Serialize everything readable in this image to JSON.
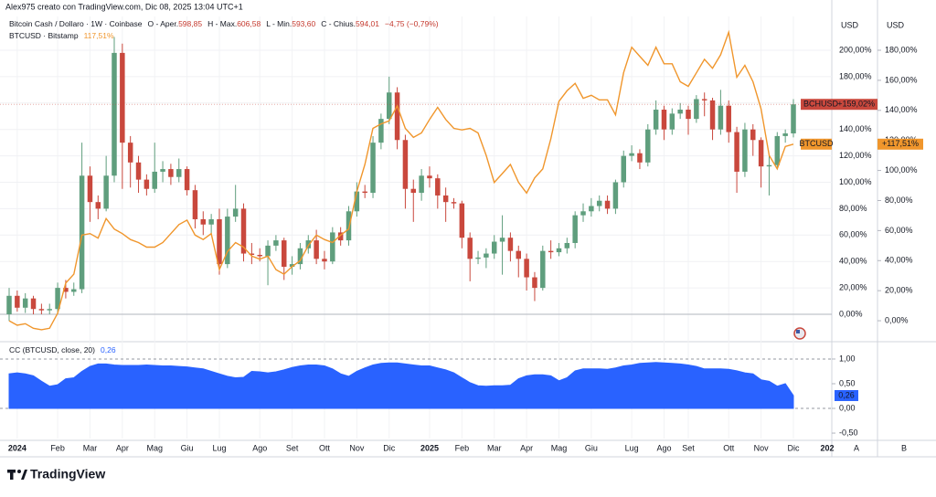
{
  "header": {
    "author_line": "Alex975 creato con TradingView.com, Dic 08, 2025 13:04 UTC+1",
    "symbol_line": "Bitcoin Cash / Dollaro · 1W · Coinbase",
    "ohlc": [
      {
        "label": "O - Aper.",
        "value": "598,85"
      },
      {
        "label": "H - Max.",
        "value": "606,58"
      },
      {
        "label": "L - Min.",
        "value": "593,60"
      },
      {
        "label": "C - Chius.",
        "value": "594,01"
      }
    ],
    "change": "−4,75 (−0,79%)",
    "compare_line": "BTCUSD · Bitstamp",
    "compare_value": "117,51%"
  },
  "chart_data": [
    {
      "type": "candlestick",
      "y_unit": "USD",
      "y2_unit": "USD",
      "grid": true,
      "categories": [
        null,
        "2024",
        null,
        null,
        null,
        null,
        "Feb",
        null,
        null,
        null,
        "Mar",
        null,
        null,
        null,
        "Apr",
        null,
        null,
        null,
        "Mag",
        null,
        null,
        null,
        "Giu",
        null,
        null,
        null,
        "Lug",
        null,
        null,
        null,
        null,
        "Ago",
        null,
        null,
        null,
        "Set",
        null,
        null,
        null,
        "Ott",
        null,
        null,
        null,
        "Nov",
        null,
        null,
        null,
        "Dic",
        null,
        null,
        null,
        null,
        "2025",
        null,
        null,
        null,
        "Feb",
        null,
        null,
        null,
        "Mar",
        null,
        null,
        null,
        "Apr",
        null,
        null,
        null,
        "Mag",
        null,
        null,
        null,
        "Giu",
        null,
        null,
        null,
        null,
        "Lug",
        null,
        null,
        null,
        "Ago",
        null,
        null,
        "Set",
        null,
        null,
        null,
        null,
        "Ott",
        null,
        null,
        null,
        "Nov",
        null,
        null,
        null,
        "Dic"
      ],
      "x_axis_partial_label": "202",
      "series": [
        {
          "name": "BCHUSD",
          "up_color": "#5f9e7d",
          "down_color": "#c9483d",
          "value_label": "+159,02%",
          "open": [
            0,
            14,
            5,
            12,
            4,
            3,
            4,
            20,
            17,
            19,
            105,
            85,
            80,
            105,
            198,
            130,
            115,
            102,
            95,
            108,
            110,
            104,
            110,
            94,
            72,
            68,
            72,
            38,
            74,
            80,
            46,
            45,
            44,
            52,
            56,
            36,
            38,
            50,
            56,
            42,
            40,
            62,
            56,
            78,
            93,
            92,
            130,
            148,
            168,
            132,
            95,
            92,
            105,
            103,
            90,
            85,
            84,
            58,
            42,
            43,
            46,
            55,
            58,
            48,
            42,
            28,
            20,
            48,
            47,
            50,
            54,
            75,
            78,
            82,
            86,
            80,
            100,
            120,
            122,
            115,
            140,
            155,
            140,
            152,
            155,
            148,
            163,
            162,
            140,
            158,
            138,
            108,
            140,
            132,
            112,
            113,
            135,
            137
          ],
          "high": [
            20,
            18,
            16,
            14,
            8,
            8,
            24,
            26,
            24,
            130,
            112,
            90,
            120,
            210,
            205,
            135,
            120,
            106,
            130,
            116,
            114,
            118,
            112,
            98,
            78,
            76,
            80,
            80,
            98,
            84,
            54,
            50,
            56,
            60,
            58,
            44,
            54,
            60,
            64,
            48,
            66,
            66,
            82,
            100,
            98,
            135,
            152,
            180,
            172,
            136,
            102,
            110,
            112,
            106,
            96,
            88,
            86,
            62,
            48,
            50,
            60,
            75,
            62,
            52,
            46,
            32,
            52,
            56,
            54,
            58,
            78,
            84,
            88,
            90,
            90,
            102,
            124,
            128,
            125,
            144,
            162,
            158,
            156,
            160,
            158,
            166,
            168,
            164,
            170,
            162,
            142,
            145,
            144,
            134,
            120,
            138,
            140,
            163
          ],
          "low": [
            -5,
            2,
            1,
            0,
            0,
            0,
            0,
            12,
            14,
            16,
            70,
            72,
            78,
            100,
            95,
            96,
            92,
            90,
            92,
            100,
            98,
            100,
            90,
            65,
            60,
            60,
            30,
            35,
            70,
            40,
            38,
            40,
            22,
            48,
            26,
            30,
            34,
            46,
            38,
            34,
            38,
            52,
            52,
            74,
            88,
            88,
            125,
            144,
            125,
            80,
            70,
            86,
            96,
            80,
            70,
            80,
            50,
            25,
            38,
            35,
            42,
            30,
            40,
            28,
            18,
            10,
            18,
            42,
            44,
            46,
            50,
            70,
            74,
            78,
            76,
            76,
            96,
            116,
            110,
            112,
            136,
            132,
            136,
            148,
            136,
            145,
            150,
            132,
            136,
            130,
            92,
            104,
            120,
            96,
            90,
            110,
            130,
            134
          ],
          "close": [
            14,
            5,
            12,
            4,
            3,
            4,
            20,
            17,
            19,
            105,
            85,
            80,
            105,
            198,
            130,
            115,
            102,
            95,
            108,
            110,
            104,
            110,
            94,
            72,
            68,
            72,
            38,
            74,
            80,
            46,
            45,
            44,
            52,
            56,
            36,
            38,
            50,
            56,
            42,
            40,
            62,
            56,
            78,
            93,
            92,
            130,
            148,
            168,
            132,
            95,
            92,
            105,
            103,
            90,
            85,
            84,
            58,
            42,
            43,
            46,
            55,
            58,
            48,
            42,
            28,
            20,
            48,
            47,
            50,
            54,
            75,
            78,
            82,
            86,
            80,
            100,
            120,
            122,
            115,
            140,
            155,
            140,
            152,
            155,
            148,
            163,
            162,
            140,
            158,
            138,
            108,
            140,
            132,
            112,
            113,
            135,
            137,
            159.02
          ]
        },
        {
          "name": "BTCUSD",
          "type": "line",
          "axis": "y2",
          "color": "#f0962c",
          "value_label": "+117,51%",
          "values": [
            0,
            -3,
            -2,
            -5,
            -6,
            -5,
            5,
            25,
            31,
            57,
            58,
            55,
            68,
            61,
            58,
            54,
            52,
            49,
            49,
            52,
            58,
            64,
            67,
            57,
            54,
            58,
            34,
            46,
            52,
            49,
            43,
            41,
            43,
            34,
            31,
            36,
            40,
            50,
            57,
            54,
            52,
            57,
            61,
            86,
            104,
            128,
            131,
            133,
            143,
            128,
            122,
            125,
            134,
            142,
            134,
            128,
            127,
            128,
            125,
            110,
            92,
            98,
            104,
            92,
            85,
            95,
            101,
            121,
            146,
            153,
            158,
            148,
            150,
            147,
            147,
            137,
            165,
            182,
            176,
            170,
            182,
            171,
            171,
            159,
            156,
            165,
            174,
            168,
            177,
            192,
            162,
            170,
            159,
            141,
            110,
            101,
            116,
            117.51
          ]
        }
      ],
      "ylim": [
        -16.6,
        225.6
      ],
      "yticks": [
        {
          "value": 0,
          "label": "0,00%"
        },
        {
          "value": 20,
          "label": "20,00%"
        },
        {
          "value": 40,
          "label": "40,00%"
        },
        {
          "value": 60,
          "label": "60,00%"
        },
        {
          "value": 80,
          "label": "80,00%"
        },
        {
          "value": 100,
          "label": "100,00%"
        },
        {
          "value": 120,
          "label": "120,00%"
        },
        {
          "value": 140,
          "label": "140,00%"
        },
        {
          "value": 160,
          "label": "160,00%"
        },
        {
          "value": 180,
          "label": "180,00%"
        },
        {
          "value": 200,
          "label": "200,00%"
        }
      ],
      "y2lim": [
        -10.3,
        202.5
      ],
      "y2ticks": [
        {
          "value": 0,
          "label": "0,00%"
        },
        {
          "value": 20,
          "label": "20,00%"
        },
        {
          "value": 40,
          "label": "40,00%"
        },
        {
          "value": 60,
          "label": "60,00%"
        },
        {
          "value": 80,
          "label": "80,00%"
        },
        {
          "value": 100,
          "label": "100,00%"
        },
        {
          "value": 120,
          "label": "120,00%"
        },
        {
          "value": 140,
          "label": "140,00%"
        },
        {
          "value": 160,
          "label": "160,00%"
        },
        {
          "value": 180,
          "label": "180,00%"
        }
      ]
    },
    {
      "type": "area",
      "title": "CC (BTCUSD, close, 20)",
      "legend_value": "0,26",
      "series": [
        {
          "color": "#2962ff",
          "value_label": "0,26",
          "values": [
            0.7,
            0.72,
            0.7,
            0.66,
            0.55,
            0.45,
            0.48,
            0.6,
            0.62,
            0.75,
            0.85,
            0.9,
            0.9,
            0.88,
            0.87,
            0.87,
            0.87,
            0.88,
            0.87,
            0.86,
            0.86,
            0.85,
            0.84,
            0.82,
            0.8,
            0.75,
            0.7,
            0.65,
            0.62,
            0.63,
            0.75,
            0.74,
            0.72,
            0.74,
            0.78,
            0.83,
            0.86,
            0.88,
            0.88,
            0.86,
            0.8,
            0.7,
            0.65,
            0.75,
            0.82,
            0.88,
            0.91,
            0.92,
            0.92,
            0.9,
            0.88,
            0.86,
            0.86,
            0.82,
            0.78,
            0.72,
            0.62,
            0.52,
            0.46,
            0.45,
            0.46,
            0.46,
            0.47,
            0.6,
            0.66,
            0.68,
            0.68,
            0.66,
            0.56,
            0.62,
            0.76,
            0.8,
            0.8,
            0.8,
            0.79,
            0.82,
            0.86,
            0.88,
            0.91,
            0.92,
            0.93,
            0.92,
            0.91,
            0.9,
            0.88,
            0.85,
            0.8,
            0.8,
            0.8,
            0.79,
            0.76,
            0.72,
            0.7,
            0.58,
            0.55,
            0.45,
            0.5,
            0.26
          ]
        }
      ],
      "ylim": [
        -0.61,
        1.24
      ],
      "yticks": [
        {
          "value": -0.5,
          "label": "-0,50"
        },
        {
          "value": 0,
          "label": "0,00"
        },
        {
          "value": 0.5,
          "label": "0,50"
        },
        {
          "value": 1,
          "label": "1,00"
        }
      ],
      "levels": [
        1,
        0
      ]
    }
  ],
  "footer": {
    "logo": "TradingView",
    "axis_buttons": [
      "A",
      "B"
    ]
  }
}
